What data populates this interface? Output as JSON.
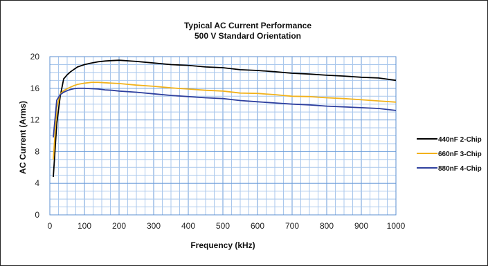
{
  "chart_data": {
    "type": "line",
    "title": "Typical AC Current Performance",
    "subtitle": "500 V Standard Orientation",
    "xlabel": "Frequency (kHz)",
    "ylabel": "AC Current (Arms)",
    "xlim": [
      0,
      1000
    ],
    "ylim": [
      0,
      20
    ],
    "xticks": [
      0,
      100,
      200,
      300,
      400,
      500,
      600,
      700,
      800,
      900,
      1000
    ],
    "yticks": [
      0,
      4,
      8,
      12,
      16,
      20
    ],
    "x_minor_step": 25,
    "y_minor_step": 1,
    "grid": true,
    "legend_position": "right",
    "series": [
      {
        "name": "440nF 2-Chip",
        "color": "#000000",
        "x": [
          10,
          20,
          30,
          40,
          50,
          60,
          70,
          80,
          100,
          120,
          140,
          160,
          180,
          200,
          250,
          300,
          350,
          400,
          450,
          500,
          550,
          600,
          650,
          700,
          750,
          800,
          850,
          900,
          950,
          1000
        ],
        "y": [
          4.8,
          11.5,
          15.0,
          17.2,
          17.7,
          18.1,
          18.4,
          18.7,
          19.0,
          19.2,
          19.35,
          19.45,
          19.5,
          19.55,
          19.4,
          19.2,
          19.0,
          18.9,
          18.7,
          18.6,
          18.35,
          18.25,
          18.1,
          17.9,
          17.8,
          17.65,
          17.55,
          17.4,
          17.3,
          17.0
        ]
      },
      {
        "name": "660nF 3-Chip",
        "color": "#F2B21B",
        "x": [
          10,
          20,
          30,
          40,
          50,
          60,
          70,
          80,
          100,
          120,
          140,
          160,
          180,
          200,
          250,
          300,
          350,
          400,
          450,
          500,
          550,
          600,
          650,
          700,
          750,
          800,
          850,
          900,
          950,
          1000
        ],
        "y": [
          7.0,
          13.5,
          15.3,
          15.7,
          15.95,
          16.15,
          16.35,
          16.5,
          16.65,
          16.75,
          16.75,
          16.7,
          16.65,
          16.6,
          16.4,
          16.25,
          16.05,
          15.9,
          15.75,
          15.65,
          15.4,
          15.35,
          15.2,
          15.0,
          14.95,
          14.8,
          14.7,
          14.55,
          14.4,
          14.25
        ]
      },
      {
        "name": "880nF 4-Chip",
        "color": "#2E3F9E",
        "x": [
          10,
          20,
          30,
          40,
          50,
          60,
          70,
          80,
          100,
          120,
          140,
          160,
          180,
          200,
          250,
          300,
          350,
          400,
          450,
          500,
          550,
          600,
          650,
          700,
          750,
          800,
          850,
          900,
          950,
          1000
        ],
        "y": [
          9.8,
          14.5,
          15.2,
          15.5,
          15.7,
          15.85,
          15.95,
          16.0,
          16.0,
          15.95,
          15.9,
          15.8,
          15.75,
          15.65,
          15.5,
          15.3,
          15.1,
          14.95,
          14.8,
          14.7,
          14.45,
          14.3,
          14.15,
          14.0,
          13.9,
          13.75,
          13.65,
          13.55,
          13.45,
          13.2
        ]
      }
    ]
  }
}
